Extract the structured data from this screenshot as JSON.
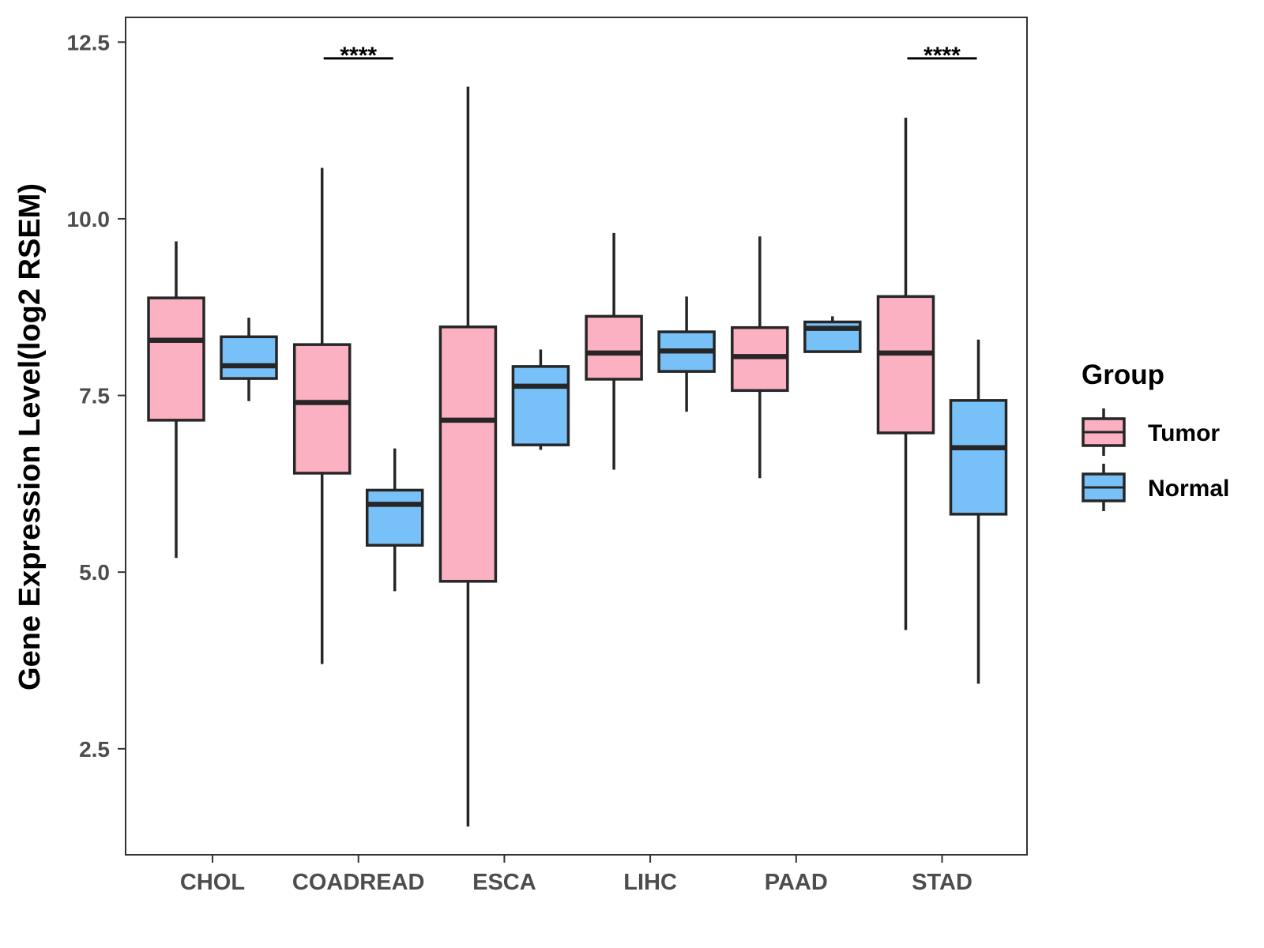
{
  "chart_data": {
    "type": "boxplot",
    "title": "",
    "xlabel": "",
    "ylabel": "Gene Expression Level(log2 RSEM)",
    "ylim": [
      1.0,
      12.85
    ],
    "yticks": [
      2.5,
      5.0,
      7.5,
      10.0,
      12.5
    ],
    "ytick_labels": [
      "2.5",
      "5.0",
      "7.5",
      "10.0",
      "12.5"
    ],
    "grid": false,
    "categories": [
      "CHOL",
      "COADREAD",
      "ESCA",
      "LIHC",
      "PAAD",
      "STAD"
    ],
    "series": [
      {
        "name": "Tumor",
        "color": "#fbb1c2",
        "boxes": [
          {
            "min": 5.2,
            "q1": 7.15,
            "median": 8.28,
            "q3": 8.88,
            "max": 9.68
          },
          {
            "min": 3.7,
            "q1": 6.4,
            "median": 7.4,
            "q3": 8.22,
            "max": 10.72
          },
          {
            "min": 1.4,
            "q1": 4.87,
            "median": 7.15,
            "q3": 8.47,
            "max": 11.87
          },
          {
            "min": 6.45,
            "q1": 7.73,
            "median": 8.1,
            "q3": 8.62,
            "max": 9.8
          },
          {
            "min": 6.33,
            "q1": 7.57,
            "median": 8.05,
            "q3": 8.46,
            "max": 9.75
          },
          {
            "min": 4.18,
            "q1": 6.97,
            "median": 8.1,
            "q3": 8.9,
            "max": 11.43
          }
        ]
      },
      {
        "name": "Normal",
        "color": "#78c1f8",
        "boxes": [
          {
            "min": 7.42,
            "q1": 7.74,
            "median": 7.92,
            "q3": 8.33,
            "max": 8.6
          },
          {
            "min": 4.73,
            "q1": 5.38,
            "median": 5.96,
            "q3": 6.16,
            "max": 6.75
          },
          {
            "min": 6.73,
            "q1": 6.8,
            "median": 7.63,
            "q3": 7.91,
            "max": 8.15
          },
          {
            "min": 7.27,
            "q1": 7.84,
            "median": 8.13,
            "q3": 8.4,
            "max": 8.9
          },
          {
            "min": 8.12,
            "q1": 8.12,
            "median": 8.45,
            "q3": 8.54,
            "max": 8.62
          },
          {
            "min": 3.42,
            "q1": 5.82,
            "median": 6.76,
            "q3": 7.43,
            "max": 8.29
          }
        ]
      }
    ],
    "annotations": [
      {
        "category": "COADREAD",
        "label": "****",
        "y": 12.27
      },
      {
        "category": "STAD",
        "label": "****",
        "y": 12.27
      }
    ],
    "legend": {
      "title": "Group",
      "placement": "right",
      "items": [
        "Tumor",
        "Normal"
      ]
    }
  }
}
